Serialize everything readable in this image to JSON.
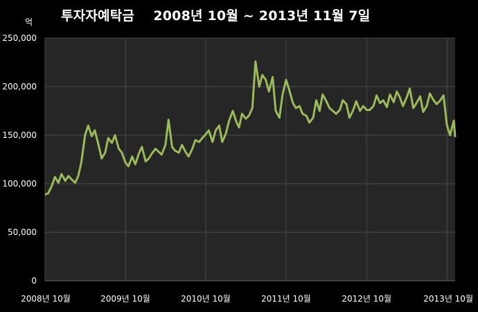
{
  "chart_data": {
    "type": "line",
    "title": "투자자예탁금    2008년 10월 ~ 2013년 11월 7일",
    "unit_label": "억",
    "ylim": [
      0,
      250000
    ],
    "yticks": [
      {
        "value": 0,
        "label": "0"
      },
      {
        "value": 50000,
        "label": "50,000"
      },
      {
        "value": 100000,
        "label": "100,000"
      },
      {
        "value": 150000,
        "label": "150,000"
      },
      {
        "value": 200000,
        "label": "200,000"
      },
      {
        "value": 250000,
        "label": "250,000"
      }
    ],
    "xlim": [
      "2008-10-01",
      "2013-11-07"
    ],
    "xticks": [
      {
        "date": "2008-10-01",
        "label": "2008년 10월"
      },
      {
        "date": "2009-10-01",
        "label": "2009년 10월"
      },
      {
        "date": "2010-10-01",
        "label": "2010년 10월"
      },
      {
        "date": "2011-10-01",
        "label": "2011년 10월"
      },
      {
        "date": "2012-10-01",
        "label": "2012년 10월"
      },
      {
        "date": "2013-10-01",
        "label": "2013년 10월"
      }
    ],
    "grid": true,
    "line_color": "#9bbb59",
    "plot_background": "#262626",
    "series": [
      {
        "x": [
          "2008-10-01",
          "2008-10-15",
          "2008-11-01",
          "2008-11-15",
          "2008-12-01",
          "2008-12-15",
          "2009-01-01",
          "2009-01-15",
          "2009-02-01",
          "2009-02-15",
          "2009-03-01",
          "2009-03-15",
          "2009-04-01",
          "2009-04-15",
          "2009-05-01",
          "2009-05-15",
          "2009-06-01",
          "2009-06-15",
          "2009-07-01",
          "2009-07-15",
          "2009-08-01",
          "2009-08-15",
          "2009-09-01",
          "2009-09-15",
          "2009-10-01",
          "2009-10-15",
          "2009-11-01",
          "2009-11-15",
          "2009-12-01",
          "2009-12-15",
          "2010-01-01",
          "2010-01-15",
          "2010-02-01",
          "2010-02-15",
          "2010-03-01",
          "2010-03-15",
          "2010-04-01",
          "2010-04-15",
          "2010-05-01",
          "2010-05-15",
          "2010-06-01",
          "2010-06-15",
          "2010-07-01",
          "2010-07-15",
          "2010-08-01",
          "2010-08-15",
          "2010-09-01",
          "2010-09-15",
          "2010-10-01",
          "2010-10-15",
          "2010-11-01",
          "2010-11-15",
          "2010-12-01",
          "2010-12-15",
          "2011-01-01",
          "2011-01-15",
          "2011-02-01",
          "2011-02-15",
          "2011-03-01",
          "2011-03-15",
          "2011-04-01",
          "2011-04-15",
          "2011-05-01",
          "2011-05-15",
          "2011-06-01",
          "2011-06-15",
          "2011-07-01",
          "2011-07-15",
          "2011-08-01",
          "2011-08-15",
          "2011-09-01",
          "2011-09-15",
          "2011-10-01",
          "2011-10-15",
          "2011-11-01",
          "2011-11-15",
          "2011-12-01",
          "2011-12-15",
          "2012-01-01",
          "2012-01-15",
          "2012-02-01",
          "2012-02-15",
          "2012-03-01",
          "2012-03-15",
          "2012-04-01",
          "2012-04-15",
          "2012-05-01",
          "2012-05-15",
          "2012-06-01",
          "2012-06-15",
          "2012-07-01",
          "2012-07-15",
          "2012-08-01",
          "2012-08-15",
          "2012-09-01",
          "2012-09-15",
          "2012-10-01",
          "2012-10-15",
          "2012-11-01",
          "2012-11-15",
          "2012-12-01",
          "2012-12-15",
          "2013-01-01",
          "2013-01-15",
          "2013-02-01",
          "2013-02-15",
          "2013-03-01",
          "2013-03-15",
          "2013-04-01",
          "2013-04-15",
          "2013-05-01",
          "2013-05-15",
          "2013-06-01",
          "2013-06-15",
          "2013-07-01",
          "2013-07-15",
          "2013-08-01",
          "2013-08-15",
          "2013-09-01",
          "2013-09-15",
          "2013-10-01",
          "2013-10-15",
          "2013-11-01",
          "2013-11-07"
        ],
        "values": [
          89000,
          90000,
          98000,
          107000,
          101000,
          110000,
          103000,
          108000,
          104000,
          101000,
          108000,
          122000,
          150000,
          160000,
          149000,
          155000,
          140000,
          126000,
          132000,
          147000,
          142000,
          150000,
          136000,
          132000,
          122000,
          118000,
          128000,
          120000,
          131000,
          138000,
          123000,
          126000,
          132000,
          136000,
          133000,
          130000,
          140000,
          166000,
          138000,
          134000,
          132000,
          140000,
          133000,
          128000,
          136000,
          145000,
          143000,
          147000,
          151000,
          155000,
          143000,
          155000,
          160000,
          143000,
          152000,
          165000,
          175000,
          165000,
          158000,
          172000,
          167000,
          170000,
          178000,
          226000,
          200000,
          212000,
          207000,
          195000,
          210000,
          175000,
          168000,
          192000,
          207000,
          197000,
          183000,
          178000,
          180000,
          172000,
          170000,
          163000,
          168000,
          186000,
          175000,
          192000,
          185000,
          178000,
          175000,
          172000,
          176000,
          186000,
          182000,
          168000,
          176000,
          185000,
          175000,
          180000,
          176000,
          176000,
          180000,
          191000,
          183000,
          186000,
          179000,
          192000,
          184000,
          195000,
          189000,
          180000,
          189000,
          198000,
          178000,
          183000,
          190000,
          174000,
          180000,
          193000,
          186000,
          182000,
          186000,
          191000,
          160000,
          150000,
          165000,
          148000
        ]
      }
    ]
  }
}
